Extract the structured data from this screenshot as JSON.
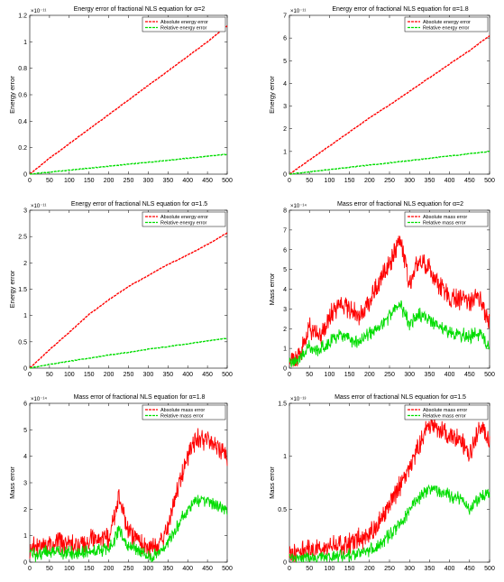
{
  "colors": {
    "absolute": "#ff0000",
    "relative": "#00dd00"
  },
  "chart_data": [
    {
      "type": "line",
      "title": "Energy error of fractional NLS equation for α=2",
      "ylabel": "Energy error",
      "multiplier": "×10⁻¹¹",
      "xlim": [
        0,
        500
      ],
      "ylim": [
        0,
        1.2
      ],
      "x_ticks": [
        0,
        50,
        100,
        150,
        200,
        250,
        300,
        350,
        400,
        450,
        500
      ],
      "y_ticks": [
        0,
        0.2,
        0.4,
        0.6,
        0.8,
        1,
        1.2
      ],
      "y_tick_labels": [
        "0",
        "0.2",
        "0.4",
        "0.6",
        "0.8",
        "1",
        "1.2"
      ],
      "legend": "top-right",
      "grid": false,
      "series": [
        {
          "name": "Absolute energy error",
          "x": [
            0,
            50,
            100,
            150,
            200,
            250,
            300,
            350,
            400,
            450,
            500
          ],
          "values": [
            0,
            0.12,
            0.23,
            0.34,
            0.45,
            0.56,
            0.67,
            0.78,
            0.89,
            1.0,
            1.12
          ]
        },
        {
          "name": "Relative energy error",
          "x": [
            0,
            50,
            100,
            150,
            200,
            250,
            300,
            350,
            400,
            450,
            500
          ],
          "values": [
            0,
            0.015,
            0.03,
            0.045,
            0.06,
            0.075,
            0.09,
            0.105,
            0.12,
            0.135,
            0.15
          ]
        }
      ]
    },
    {
      "type": "line",
      "title": "Energy error of fractional NLS equation for α=1.8",
      "ylabel": "Energy error",
      "multiplier": "×10⁻¹¹",
      "xlim": [
        0,
        500
      ],
      "ylim": [
        0,
        7
      ],
      "x_ticks": [
        0,
        50,
        100,
        150,
        200,
        250,
        300,
        350,
        400,
        450,
        500
      ],
      "y_ticks": [
        0,
        1,
        2,
        3,
        4,
        5,
        6,
        7
      ],
      "y_tick_labels": [
        "0",
        "1",
        "2",
        "3",
        "4",
        "5",
        "6",
        "7"
      ],
      "legend": "top-right",
      "grid": false,
      "series": [
        {
          "name": "Absolute energy error",
          "x": [
            0,
            50,
            100,
            150,
            200,
            250,
            300,
            350,
            400,
            450,
            500
          ],
          "values": [
            0,
            0.62,
            1.24,
            1.86,
            2.48,
            3.05,
            3.65,
            4.25,
            4.85,
            5.45,
            6.1
          ]
        },
        {
          "name": "Relative energy error",
          "x": [
            0,
            50,
            100,
            150,
            200,
            250,
            300,
            350,
            400,
            450,
            500
          ],
          "values": [
            0,
            0.1,
            0.2,
            0.3,
            0.4,
            0.5,
            0.6,
            0.7,
            0.8,
            0.9,
            1.0
          ]
        }
      ]
    },
    {
      "type": "line",
      "title": "Energy error of fractional NLS equation for α=1.5",
      "ylabel": "Energy error",
      "multiplier": "×10⁻¹¹",
      "xlim": [
        0,
        500
      ],
      "ylim": [
        0,
        3
      ],
      "x_ticks": [
        0,
        50,
        100,
        150,
        200,
        250,
        300,
        350,
        400,
        450,
        500
      ],
      "y_ticks": [
        0,
        0.5,
        1,
        1.5,
        2,
        2.5,
        3
      ],
      "y_tick_labels": [
        "0",
        "0.5",
        "1",
        "1.5",
        "2",
        "2.5",
        "3"
      ],
      "legend": "top-right",
      "grid": false,
      "series": [
        {
          "name": "Absolute energy error",
          "x": [
            0,
            50,
            100,
            150,
            200,
            250,
            300,
            350,
            400,
            450,
            500
          ],
          "values": [
            0,
            0.35,
            0.68,
            1.02,
            1.3,
            1.55,
            1.76,
            1.97,
            2.15,
            2.35,
            2.57
          ]
        },
        {
          "name": "Relative energy error",
          "x": [
            0,
            50,
            100,
            150,
            200,
            250,
            300,
            350,
            400,
            450,
            500
          ],
          "values": [
            0,
            0.07,
            0.13,
            0.19,
            0.25,
            0.3,
            0.36,
            0.41,
            0.46,
            0.52,
            0.57
          ]
        }
      ]
    },
    {
      "type": "line",
      "title": "Mass error of fractional NLS equation for α=2",
      "ylabel": "Mass error",
      "multiplier": "×10⁻¹⁴",
      "xlim": [
        0,
        500
      ],
      "ylim": [
        0,
        8
      ],
      "x_ticks": [
        0,
        50,
        100,
        150,
        200,
        250,
        300,
        350,
        400,
        450,
        500
      ],
      "y_ticks": [
        0,
        1,
        2,
        3,
        4,
        5,
        6,
        7,
        8
      ],
      "y_tick_labels": [
        "0",
        "1",
        "2",
        "3",
        "4",
        "5",
        "6",
        "7",
        "8"
      ],
      "legend": "top-right",
      "grid": false,
      "series": [
        {
          "name": "Absolute mass error",
          "x": [
            0,
            25,
            50,
            75,
            100,
            125,
            150,
            175,
            200,
            225,
            250,
            275,
            300,
            325,
            350,
            375,
            400,
            425,
            450,
            475,
            500
          ],
          "values": [
            0.3,
            0.6,
            2.0,
            1.6,
            2.6,
            3.3,
            3.0,
            2.5,
            3.5,
            4.3,
            5.2,
            6.7,
            4.3,
            5.4,
            5.1,
            4.2,
            3.6,
            3.5,
            3.3,
            3.6,
            2.2
          ]
        },
        {
          "name": "Relative mass error",
          "x": [
            0,
            25,
            50,
            75,
            100,
            125,
            150,
            175,
            200,
            225,
            250,
            275,
            300,
            325,
            350,
            375,
            400,
            425,
            450,
            475,
            500
          ],
          "values": [
            0.2,
            0.4,
            1.1,
            0.9,
            1.3,
            1.7,
            1.5,
            1.3,
            1.8,
            2.1,
            2.6,
            3.3,
            2.2,
            2.7,
            2.5,
            2.1,
            1.8,
            1.7,
            1.6,
            1.8,
            1.1
          ]
        }
      ]
    },
    {
      "type": "line",
      "title": "Mass error of fractional NLS equation for α=1.8",
      "ylabel": "Mass error",
      "multiplier": "×10⁻¹⁴",
      "xlim": [
        0,
        500
      ],
      "ylim": [
        0,
        6
      ],
      "x_ticks": [
        0,
        50,
        100,
        150,
        200,
        250,
        300,
        350,
        400,
        450,
        500
      ],
      "y_ticks": [
        0,
        1,
        2,
        3,
        4,
        5,
        6
      ],
      "y_tick_labels": [
        "0",
        "1",
        "2",
        "3",
        "4",
        "5",
        "6"
      ],
      "legend": "top-right",
      "grid": false,
      "series": [
        {
          "name": "Absolute mass error",
          "x": [
            0,
            25,
            50,
            75,
            100,
            125,
            150,
            175,
            200,
            225,
            250,
            275,
            300,
            325,
            350,
            375,
            400,
            425,
            450,
            475,
            500
          ],
          "values": [
            0.5,
            0.6,
            0.7,
            0.8,
            0.7,
            0.6,
            0.8,
            0.9,
            0.9,
            2.5,
            1.2,
            0.8,
            0.5,
            0.6,
            1.3,
            2.8,
            4.0,
            4.6,
            4.7,
            4.2,
            4.0
          ]
        },
        {
          "name": "Relative mass error",
          "x": [
            0,
            25,
            50,
            75,
            100,
            125,
            150,
            175,
            200,
            225,
            250,
            275,
            300,
            325,
            350,
            375,
            400,
            425,
            450,
            475,
            500
          ],
          "values": [
            0.3,
            0.3,
            0.4,
            0.4,
            0.35,
            0.3,
            0.4,
            0.45,
            0.45,
            1.2,
            0.6,
            0.4,
            0.25,
            0.3,
            0.7,
            1.4,
            2.0,
            2.3,
            2.35,
            2.1,
            2.0
          ]
        }
      ]
    },
    {
      "type": "line",
      "title": "Mass error of fractional NLS equation for α=1.5",
      "ylabel": "Mass error",
      "multiplier": "×10⁻¹³",
      "xlim": [
        0,
        500
      ],
      "ylim": [
        0,
        1.5
      ],
      "x_ticks": [
        0,
        50,
        100,
        150,
        200,
        250,
        300,
        350,
        400,
        450,
        500
      ],
      "y_ticks": [
        0,
        0.5,
        1,
        1.5
      ],
      "y_tick_labels": [
        "0",
        "0.5",
        "1",
        "1.5"
      ],
      "legend": "top-right",
      "grid": false,
      "series": [
        {
          "name": "Absolute mass error",
          "x": [
            0,
            25,
            50,
            75,
            100,
            125,
            150,
            175,
            200,
            225,
            250,
            275,
            300,
            325,
            350,
            375,
            400,
            425,
            450,
            475,
            500
          ],
          "values": [
            0.06,
            0.09,
            0.12,
            0.11,
            0.15,
            0.16,
            0.18,
            0.22,
            0.26,
            0.38,
            0.55,
            0.7,
            0.9,
            1.1,
            1.3,
            1.25,
            1.2,
            1.15,
            1.0,
            1.3,
            1.15
          ]
        },
        {
          "name": "Relative mass error",
          "x": [
            0,
            25,
            50,
            75,
            100,
            125,
            150,
            175,
            200,
            225,
            250,
            275,
            300,
            325,
            350,
            375,
            400,
            425,
            450,
            475,
            500
          ],
          "values": [
            0.02,
            0.03,
            0.04,
            0.04,
            0.05,
            0.06,
            0.07,
            0.09,
            0.11,
            0.17,
            0.25,
            0.35,
            0.5,
            0.6,
            0.7,
            0.67,
            0.63,
            0.6,
            0.5,
            0.62,
            0.65
          ]
        }
      ]
    }
  ]
}
